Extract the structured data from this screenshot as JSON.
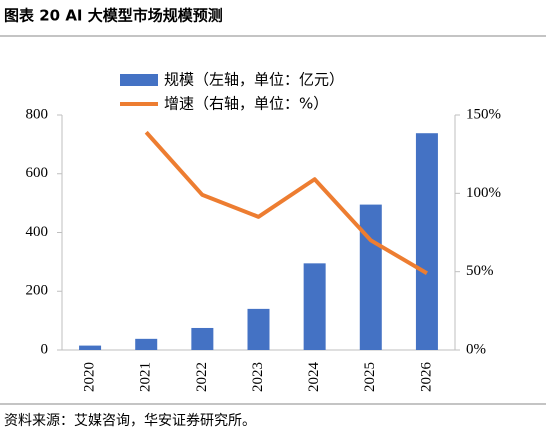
{
  "chart_data": {
    "type": "combo",
    "title": "图表 20 AI 大模型市场规模预测",
    "source": "资料来源：艾媒咨询，华安证券研究所。",
    "categories": [
      "2020",
      "2021",
      "2022",
      "2023",
      "2024",
      "2025",
      "2026"
    ],
    "series": [
      {
        "name": "规模（左轴，单位：亿元）",
        "type": "bar",
        "color": "#4472c4",
        "values": [
          15,
          38,
          75,
          140,
          295,
          495,
          738
        ]
      },
      {
        "name": "增速（右轴，单位：%）",
        "type": "line",
        "axis": "y2",
        "color": "#ed7d31",
        "values": [
          null,
          139,
          99,
          85,
          109,
          70,
          49
        ]
      }
    ],
    "ylim": [
      0,
      800
    ],
    "yticks": [
      0,
      200,
      400,
      600,
      800
    ],
    "y2lim": [
      0,
      150
    ],
    "y2ticks": [
      {
        "value": 0,
        "label": "0%"
      },
      {
        "value": 50,
        "label": "50%"
      },
      {
        "value": 100,
        "label": "100%"
      },
      {
        "value": 150,
        "label": "150%"
      }
    ],
    "grid": false,
    "legend": "top"
  }
}
